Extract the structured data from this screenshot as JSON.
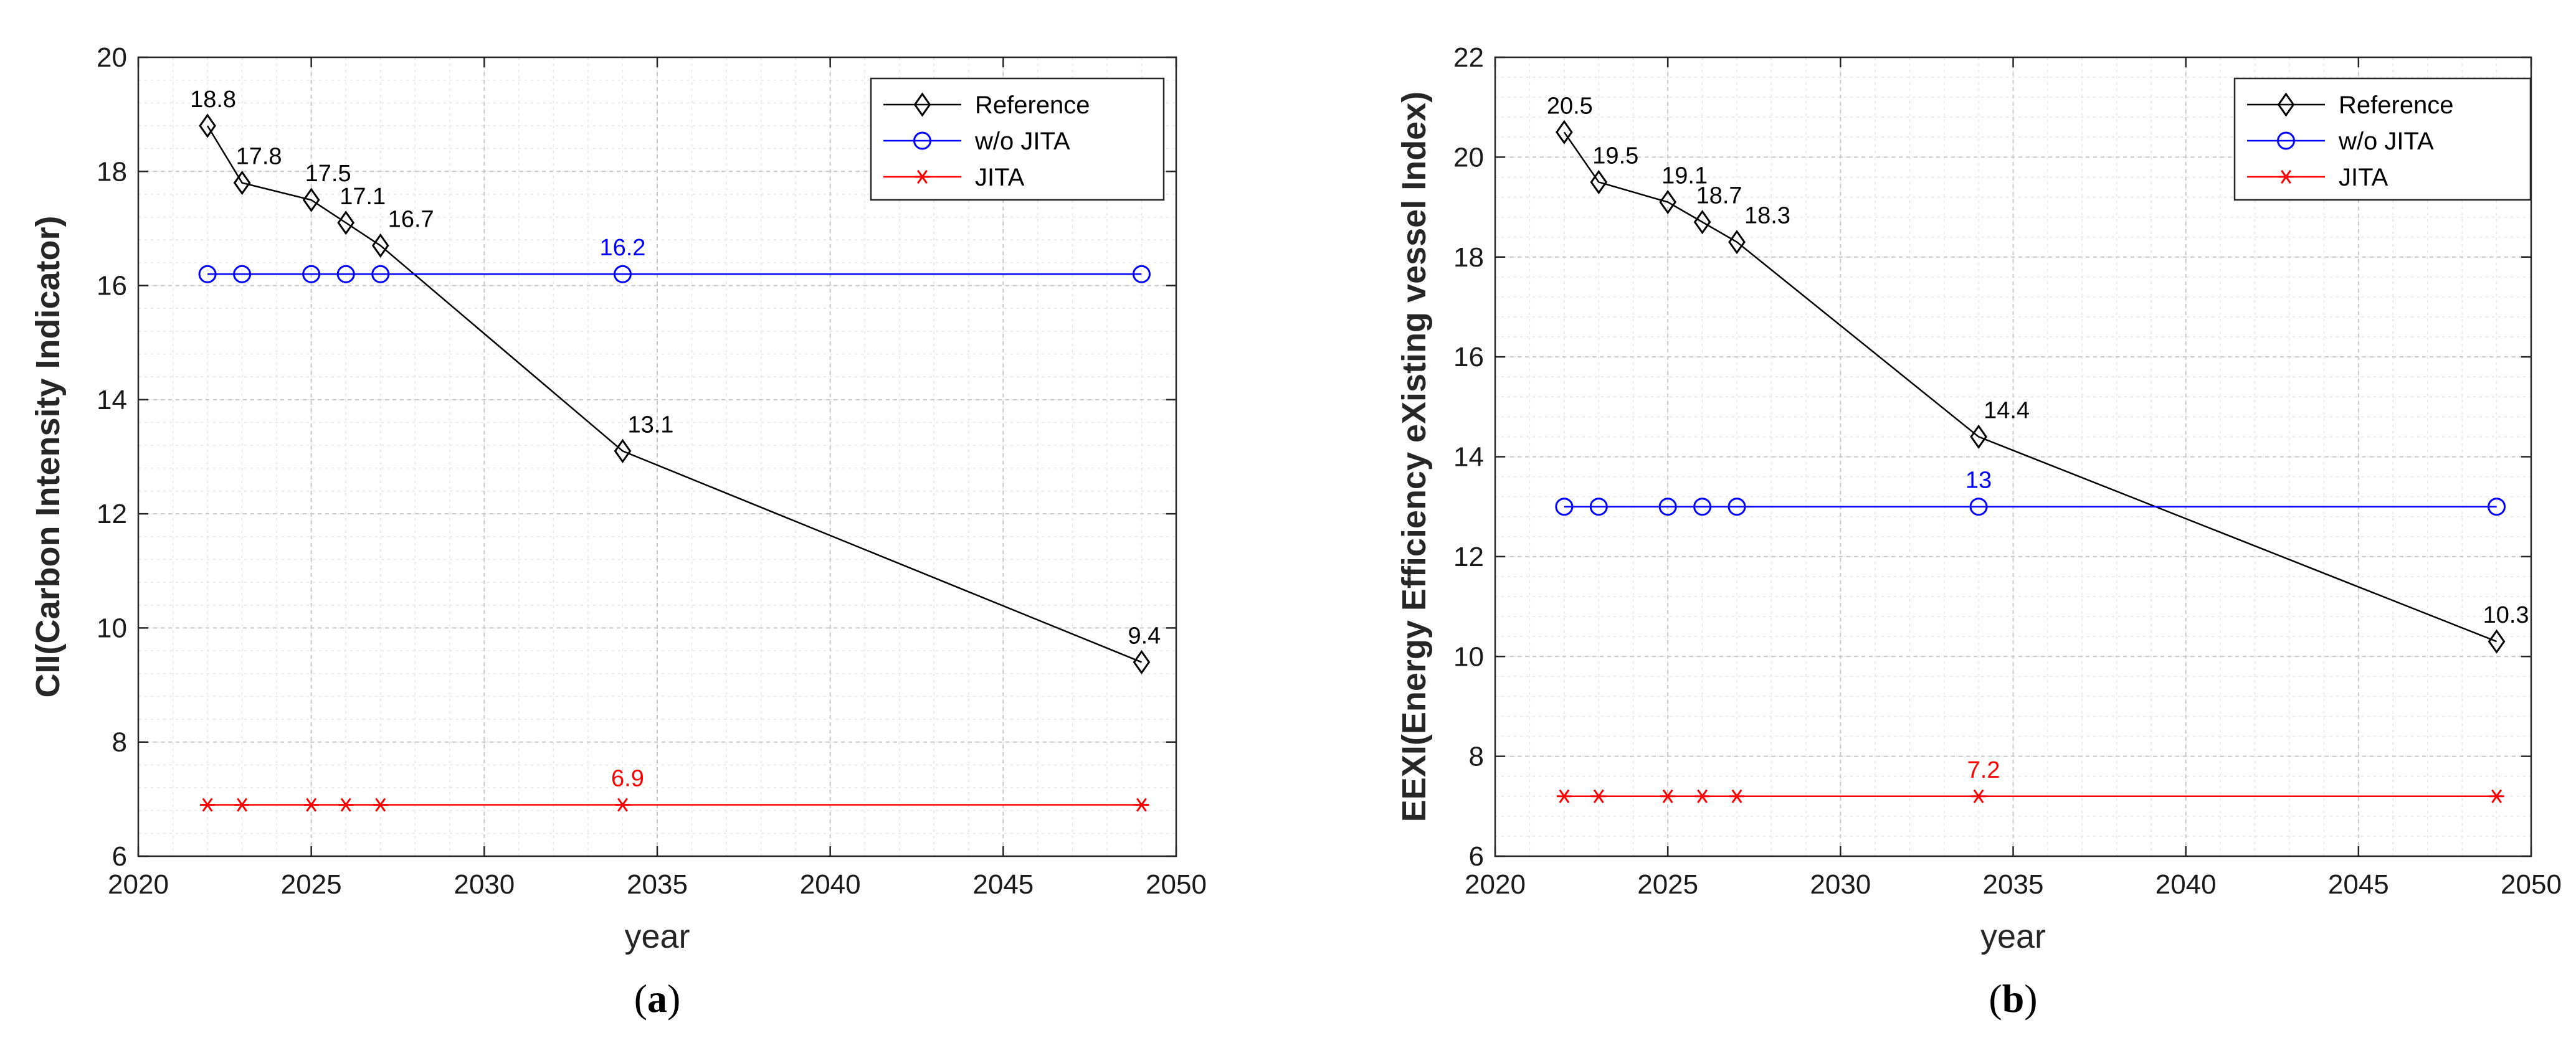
{
  "chart_data": [
    {
      "type": "line",
      "caption_open": "(",
      "caption_letter": "a",
      "caption_close": ")",
      "xlabel": "year",
      "ylabel": "CII(Carbon Intensity Indicator)",
      "xlim": [
        2020,
        2050
      ],
      "ylim": [
        6,
        20
      ],
      "xticks": [
        2020,
        2025,
        2030,
        2035,
        2040,
        2045,
        2050
      ],
      "yticks": [
        6,
        8,
        10,
        12,
        14,
        16,
        18,
        20
      ],
      "grid": true,
      "legend_position": "top-right",
      "x": [
        2022,
        2023,
        2025,
        2026,
        2027,
        2034,
        2049
      ],
      "series": [
        {
          "name": "Reference",
          "color": "#000000",
          "marker": "diamond",
          "values": [
            18.8,
            17.8,
            17.5,
            17.1,
            16.7,
            13.1,
            9.4
          ],
          "labels": [
            "18.8",
            "17.8",
            "17.5",
            "17.1",
            "16.7",
            "13.1",
            "9.4"
          ]
        },
        {
          "name": "w/o JITA",
          "color": "#0000ff",
          "marker": "circle",
          "values": [
            16.2,
            16.2,
            16.2,
            16.2,
            16.2,
            16.2,
            16.2
          ],
          "labels": [
            "",
            "",
            "",
            "",
            "",
            "16.2",
            ""
          ]
        },
        {
          "name": "JITA",
          "color": "#ff0000",
          "marker": "asterisk",
          "values": [
            6.9,
            6.9,
            6.9,
            6.9,
            6.9,
            6.9,
            6.9
          ],
          "labels": [
            "",
            "",
            "",
            "",
            "",
            "6.9",
            ""
          ]
        }
      ]
    },
    {
      "type": "line",
      "caption_open": "(",
      "caption_letter": "b",
      "caption_close": ")",
      "xlabel": "year",
      "ylabel": "EEXI(Energy Efficiency eXisting vessel Index)",
      "xlim": [
        2020,
        2050
      ],
      "ylim": [
        6,
        22
      ],
      "xticks": [
        2020,
        2025,
        2030,
        2035,
        2040,
        2045,
        2050
      ],
      "yticks": [
        6,
        8,
        10,
        12,
        14,
        16,
        18,
        20,
        22
      ],
      "grid": true,
      "legend_position": "top-right",
      "x": [
        2022,
        2023,
        2025,
        2026,
        2027,
        2034,
        2049
      ],
      "series": [
        {
          "name": "Reference",
          "color": "#000000",
          "marker": "diamond",
          "values": [
            20.5,
            19.5,
            19.1,
            18.7,
            18.3,
            14.4,
            10.3
          ],
          "labels": [
            "20.5",
            "19.5",
            "19.1",
            "18.7",
            "18.3",
            "14.4",
            "10.3"
          ]
        },
        {
          "name": "w/o JITA",
          "color": "#0000ff",
          "marker": "circle",
          "values": [
            13,
            13,
            13,
            13,
            13,
            13,
            13
          ],
          "labels": [
            "",
            "",
            "",
            "",
            "",
            "13",
            ""
          ]
        },
        {
          "name": "JITA",
          "color": "#ff0000",
          "marker": "asterisk",
          "values": [
            7.2,
            7.2,
            7.2,
            7.2,
            7.2,
            7.2,
            7.2
          ],
          "labels": [
            "",
            "",
            "",
            "",
            "",
            "7.2",
            ""
          ]
        }
      ]
    }
  ]
}
